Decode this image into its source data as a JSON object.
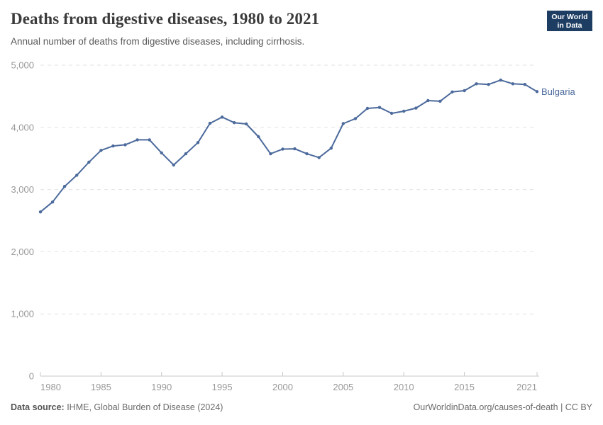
{
  "header": {
    "title": "Deaths from digestive diseases, 1980 to 2021",
    "subtitle": "Annual number of deaths from digestive diseases, including cirrhosis.",
    "logo": {
      "line1": "Our World",
      "line2": "in Data"
    }
  },
  "chart_data": {
    "type": "line",
    "title": "Deaths from digestive diseases, 1980 to 2021",
    "entity": "Bulgaria",
    "x": [
      1980,
      1981,
      1982,
      1983,
      1984,
      1985,
      1986,
      1987,
      1988,
      1989,
      1990,
      1991,
      1992,
      1993,
      1994,
      1995,
      1996,
      1997,
      1998,
      1999,
      2000,
      2001,
      2002,
      2003,
      2004,
      2005,
      2006,
      2007,
      2008,
      2009,
      2010,
      2011,
      2012,
      2013,
      2014,
      2015,
      2016,
      2017,
      2018,
      2019,
      2020,
      2021
    ],
    "values": [
      2640,
      2800,
      3050,
      3230,
      3440,
      3630,
      3700,
      3720,
      3800,
      3800,
      3590,
      3395,
      3575,
      3755,
      4065,
      4165,
      4075,
      4055,
      3850,
      3575,
      3650,
      3655,
      3575,
      3515,
      3665,
      4060,
      4140,
      4305,
      4320,
      4225,
      4260,
      4310,
      4430,
      4420,
      4570,
      4590,
      4700,
      4690,
      4760,
      4700,
      4690,
      4575
    ],
    "xlabel": "",
    "ylabel": "",
    "ylim": [
      0,
      5000
    ],
    "yticks": [
      0,
      1000,
      2000,
      3000,
      4000,
      5000
    ],
    "ytick_labels": [
      "0",
      "1,000",
      "2,000",
      "3,000",
      "4,000",
      "5,000"
    ],
    "xticks": [
      1980,
      1985,
      1990,
      1995,
      2000,
      2005,
      2010,
      2015,
      2021
    ],
    "grid": true,
    "legend_position": "end-of-line-label",
    "line_color": "#4C6A9C"
  },
  "footer": {
    "source_label": "Data source:",
    "source_text": " IHME, Global Burden of Disease (2024)",
    "credit": "OurWorldinData.org/causes-of-death | CC BY"
  },
  "colors": {
    "accent_line": "#4C6A9C",
    "logo_bg": "#1d3d63",
    "logo_bar": "#c5364a",
    "grid": "#e2e2e2",
    "axis": "#c8c8c8",
    "tick_text": "#999999",
    "title_text": "#3b3b3b",
    "subtitle_text": "#5b5b5b"
  }
}
